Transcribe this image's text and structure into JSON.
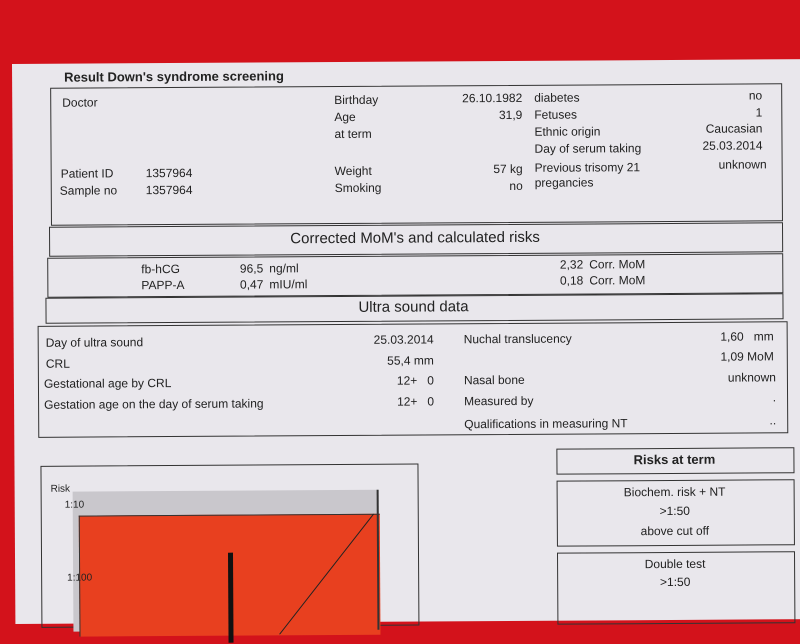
{
  "title": "Result  Down's syndrome screening",
  "patient": {
    "doctor_label": "Doctor",
    "patient_id_label": "Patient ID",
    "patient_id": "1357964",
    "sample_no_label": "Sample no",
    "sample_no": "1357964",
    "birthday_label": "Birthday",
    "birthday": "26.10.1982",
    "age_label": "Age",
    "age": "31,9",
    "at_term_label": "at term",
    "weight_label": "Weight",
    "weight": "57  kg",
    "smoking_label": "Smoking",
    "smoking": "no",
    "diabetes_label": "diabetes",
    "diabetes": "no",
    "fetuses_label": "Fetuses",
    "fetuses": "1",
    "ethnic_label": "Ethnic origin",
    "ethnic": "Caucasian",
    "serum_day_label": "Day of serum taking",
    "serum_day": "25.03.2014",
    "prev_trisomy_label": "Previous trisomy 21",
    "prev_trisomy_label2": "pregancies",
    "prev_trisomy": "unknown"
  },
  "mom_section": {
    "title": "Corrected MoM's and calculated risks",
    "rows": [
      {
        "name": "fb-hCG",
        "value": "96,5",
        "unit": "ng/ml",
        "mom": "2,32",
        "mom_unit": "Corr. MoM"
      },
      {
        "name": "PAPP-A",
        "value": "0,47",
        "unit": "mIU/ml",
        "mom": "0,18",
        "mom_unit": "Corr. MoM"
      }
    ]
  },
  "ultrasound": {
    "title": "Ultra sound data",
    "day_label": "Day of ultra sound",
    "day": "25.03.2014",
    "crl_label": "CRL",
    "crl": "55,4 mm",
    "ga_crl_label": "Gestational age by CRL",
    "ga_crl": "12+   0",
    "ga_serum_label": "Gestation age on the day of serum taking",
    "ga_serum": "12+   0",
    "nt_label": "Nuchal translucency",
    "nt": "1,60   mm",
    "nt_mom": "1,09 MoM",
    "nasal_label": "Nasal bone",
    "nasal": "unknown",
    "measured_label": "Measured by",
    "measured": ".",
    "qual_label": "Qualifications in measuring NT",
    "qual": ".."
  },
  "chart": {
    "y_label": "Risk",
    "tick_top": "1:10",
    "tick_mid": "1:100",
    "fill_color": "#e8401f"
  },
  "risks": {
    "title": "Risks at term",
    "biochem_label": "Biochem. risk + NT",
    "biochem_value": ">1:50",
    "biochem_note": "above cut off",
    "double_label": "Double test",
    "double_value": ">1:50"
  }
}
